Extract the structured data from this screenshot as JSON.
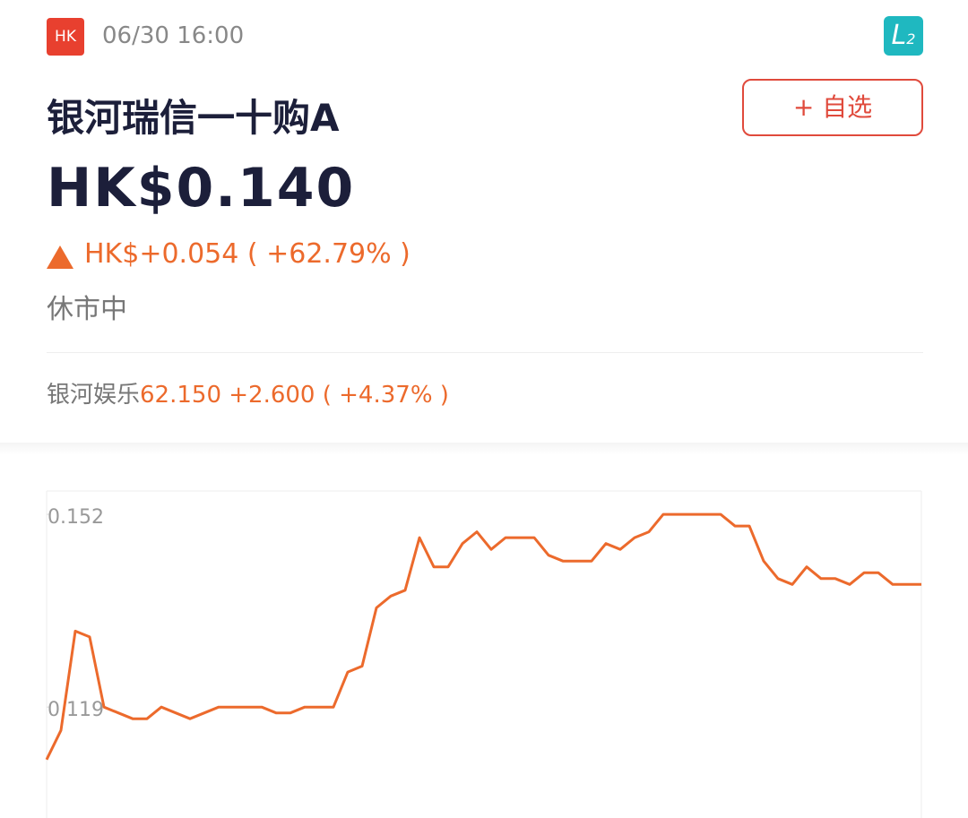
{
  "header": {
    "market": "HK",
    "time": "06/30 16:00",
    "level": {
      "letter": "L",
      "sub": "2"
    }
  },
  "name": "银河瑞信一十购A",
  "watch_button": "+ 自选",
  "price": "HK$0.140",
  "change": "HK$+0.054 ( +62.79% )",
  "status": "休市中",
  "underlying": {
    "name": "银河娱乐",
    "quote": "62.150 +2.600 ( +4.37% )"
  },
  "chart_data": {
    "type": "line",
    "color": "#ec6a2c",
    "ylim": [
      0.1,
      0.156
    ],
    "yticks": [
      0.152,
      0.119
    ],
    "series": [
      {
        "values": [
          0.11,
          0.115,
          0.132,
          0.131,
          0.119,
          0.118,
          0.117,
          0.117,
          0.119,
          0.118,
          0.117,
          0.118,
          0.119,
          0.119,
          0.119,
          0.119,
          0.118,
          0.118,
          0.119,
          0.119,
          0.119,
          0.125,
          0.126,
          0.136,
          0.138,
          0.139,
          0.148,
          0.143,
          0.143,
          0.147,
          0.149,
          0.146,
          0.148,
          0.148,
          0.148,
          0.145,
          0.144,
          0.144,
          0.144,
          0.147,
          0.146,
          0.148,
          0.149,
          0.152,
          0.152,
          0.152,
          0.152,
          0.152,
          0.15,
          0.15,
          0.144,
          0.141,
          0.14,
          0.143,
          0.141,
          0.141,
          0.14,
          0.142,
          0.142,
          0.14,
          0.14,
          0.14
        ]
      }
    ]
  }
}
